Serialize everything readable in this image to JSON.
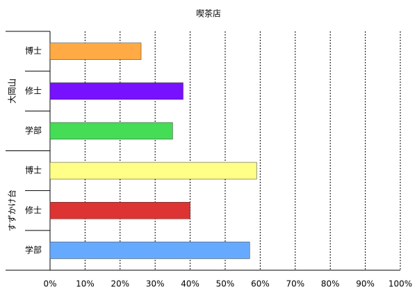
{
  "chart_data": {
    "type": "bar",
    "title": "喫茶店",
    "groups": [
      {
        "name": "大岡山",
        "categories": [
          "博士",
          "修士",
          "学部"
        ],
        "values": [
          26,
          38,
          35
        ],
        "colors": [
          "#ffaa44",
          "#7711ff",
          "#44dd55"
        ]
      },
      {
        "name": "すずかけ台",
        "categories": [
          "博士",
          "修士",
          "学部"
        ],
        "values": [
          59,
          40,
          57
        ],
        "colors": [
          "#ffff88",
          "#dd3333",
          "#66aaff"
        ]
      }
    ],
    "xlim": [
      0,
      100
    ],
    "xticks": [
      {
        "value": 0,
        "label": "0%"
      },
      {
        "value": 10,
        "label": "10%"
      },
      {
        "value": 20,
        "label": "20%"
      },
      {
        "value": 30,
        "label": "30%"
      },
      {
        "value": 40,
        "label": "40%"
      },
      {
        "value": 50,
        "label": "50%"
      },
      {
        "value": 60,
        "label": "60%"
      },
      {
        "value": 70,
        "label": "70%"
      },
      {
        "value": 80,
        "label": "80%"
      },
      {
        "value": 90,
        "label": "90%"
      },
      {
        "value": 100,
        "label": "100%"
      }
    ],
    "grid": true
  }
}
